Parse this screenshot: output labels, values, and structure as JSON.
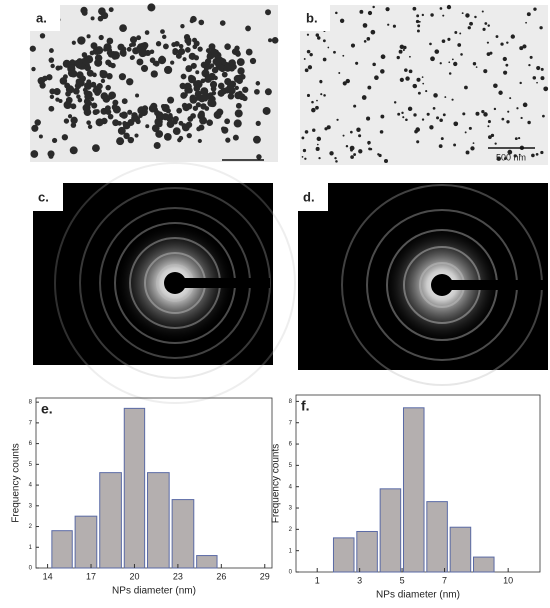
{
  "panels": [
    {
      "label": "a."
    },
    {
      "label": "b.",
      "scale_bar": "500 nm"
    },
    {
      "label": "c."
    },
    {
      "label": "d."
    }
  ],
  "chart_data": [
    {
      "type": "histogram",
      "label": "e.",
      "xlabel": "NPs diameter (nm)",
      "ylabel": "Frequency counts",
      "bins": [
        14.2,
        15.8,
        17.5,
        19.2,
        20.8,
        22.5,
        24.2,
        25.8
      ],
      "values": [
        1.8,
        2.5,
        4.6,
        7.7,
        4.6,
        3.3,
        0.6
      ],
      "color": "#b4afaf",
      "edgecolor": "#5a6aa5",
      "xlim": [
        13.2,
        29.5
      ],
      "ylim": [
        0,
        8.2
      ],
      "xticks": [
        14,
        17,
        20,
        23,
        26,
        29
      ],
      "yticks": [
        0,
        1,
        2,
        3,
        4,
        5,
        6,
        7,
        8
      ]
    },
    {
      "type": "histogram",
      "label": "f.",
      "xlabel": "NPs diameter (nm)",
      "ylabel": "Frequency counts",
      "bins": [
        1.7,
        2.8,
        3.9,
        5.0,
        6.1,
        7.2,
        8.3,
        9.4
      ],
      "values": [
        1.6,
        1.9,
        3.9,
        7.7,
        3.3,
        2.1,
        0.7
      ],
      "color": "#b4afaf",
      "edgecolor": "#5a6aa5",
      "xlim": [
        0,
        11.5
      ],
      "ylim": [
        0,
        8.3
      ],
      "xticks": [
        1,
        3,
        5,
        7,
        10
      ],
      "yticks": [
        0,
        1,
        2,
        3,
        4,
        5,
        6,
        7,
        8
      ]
    }
  ]
}
